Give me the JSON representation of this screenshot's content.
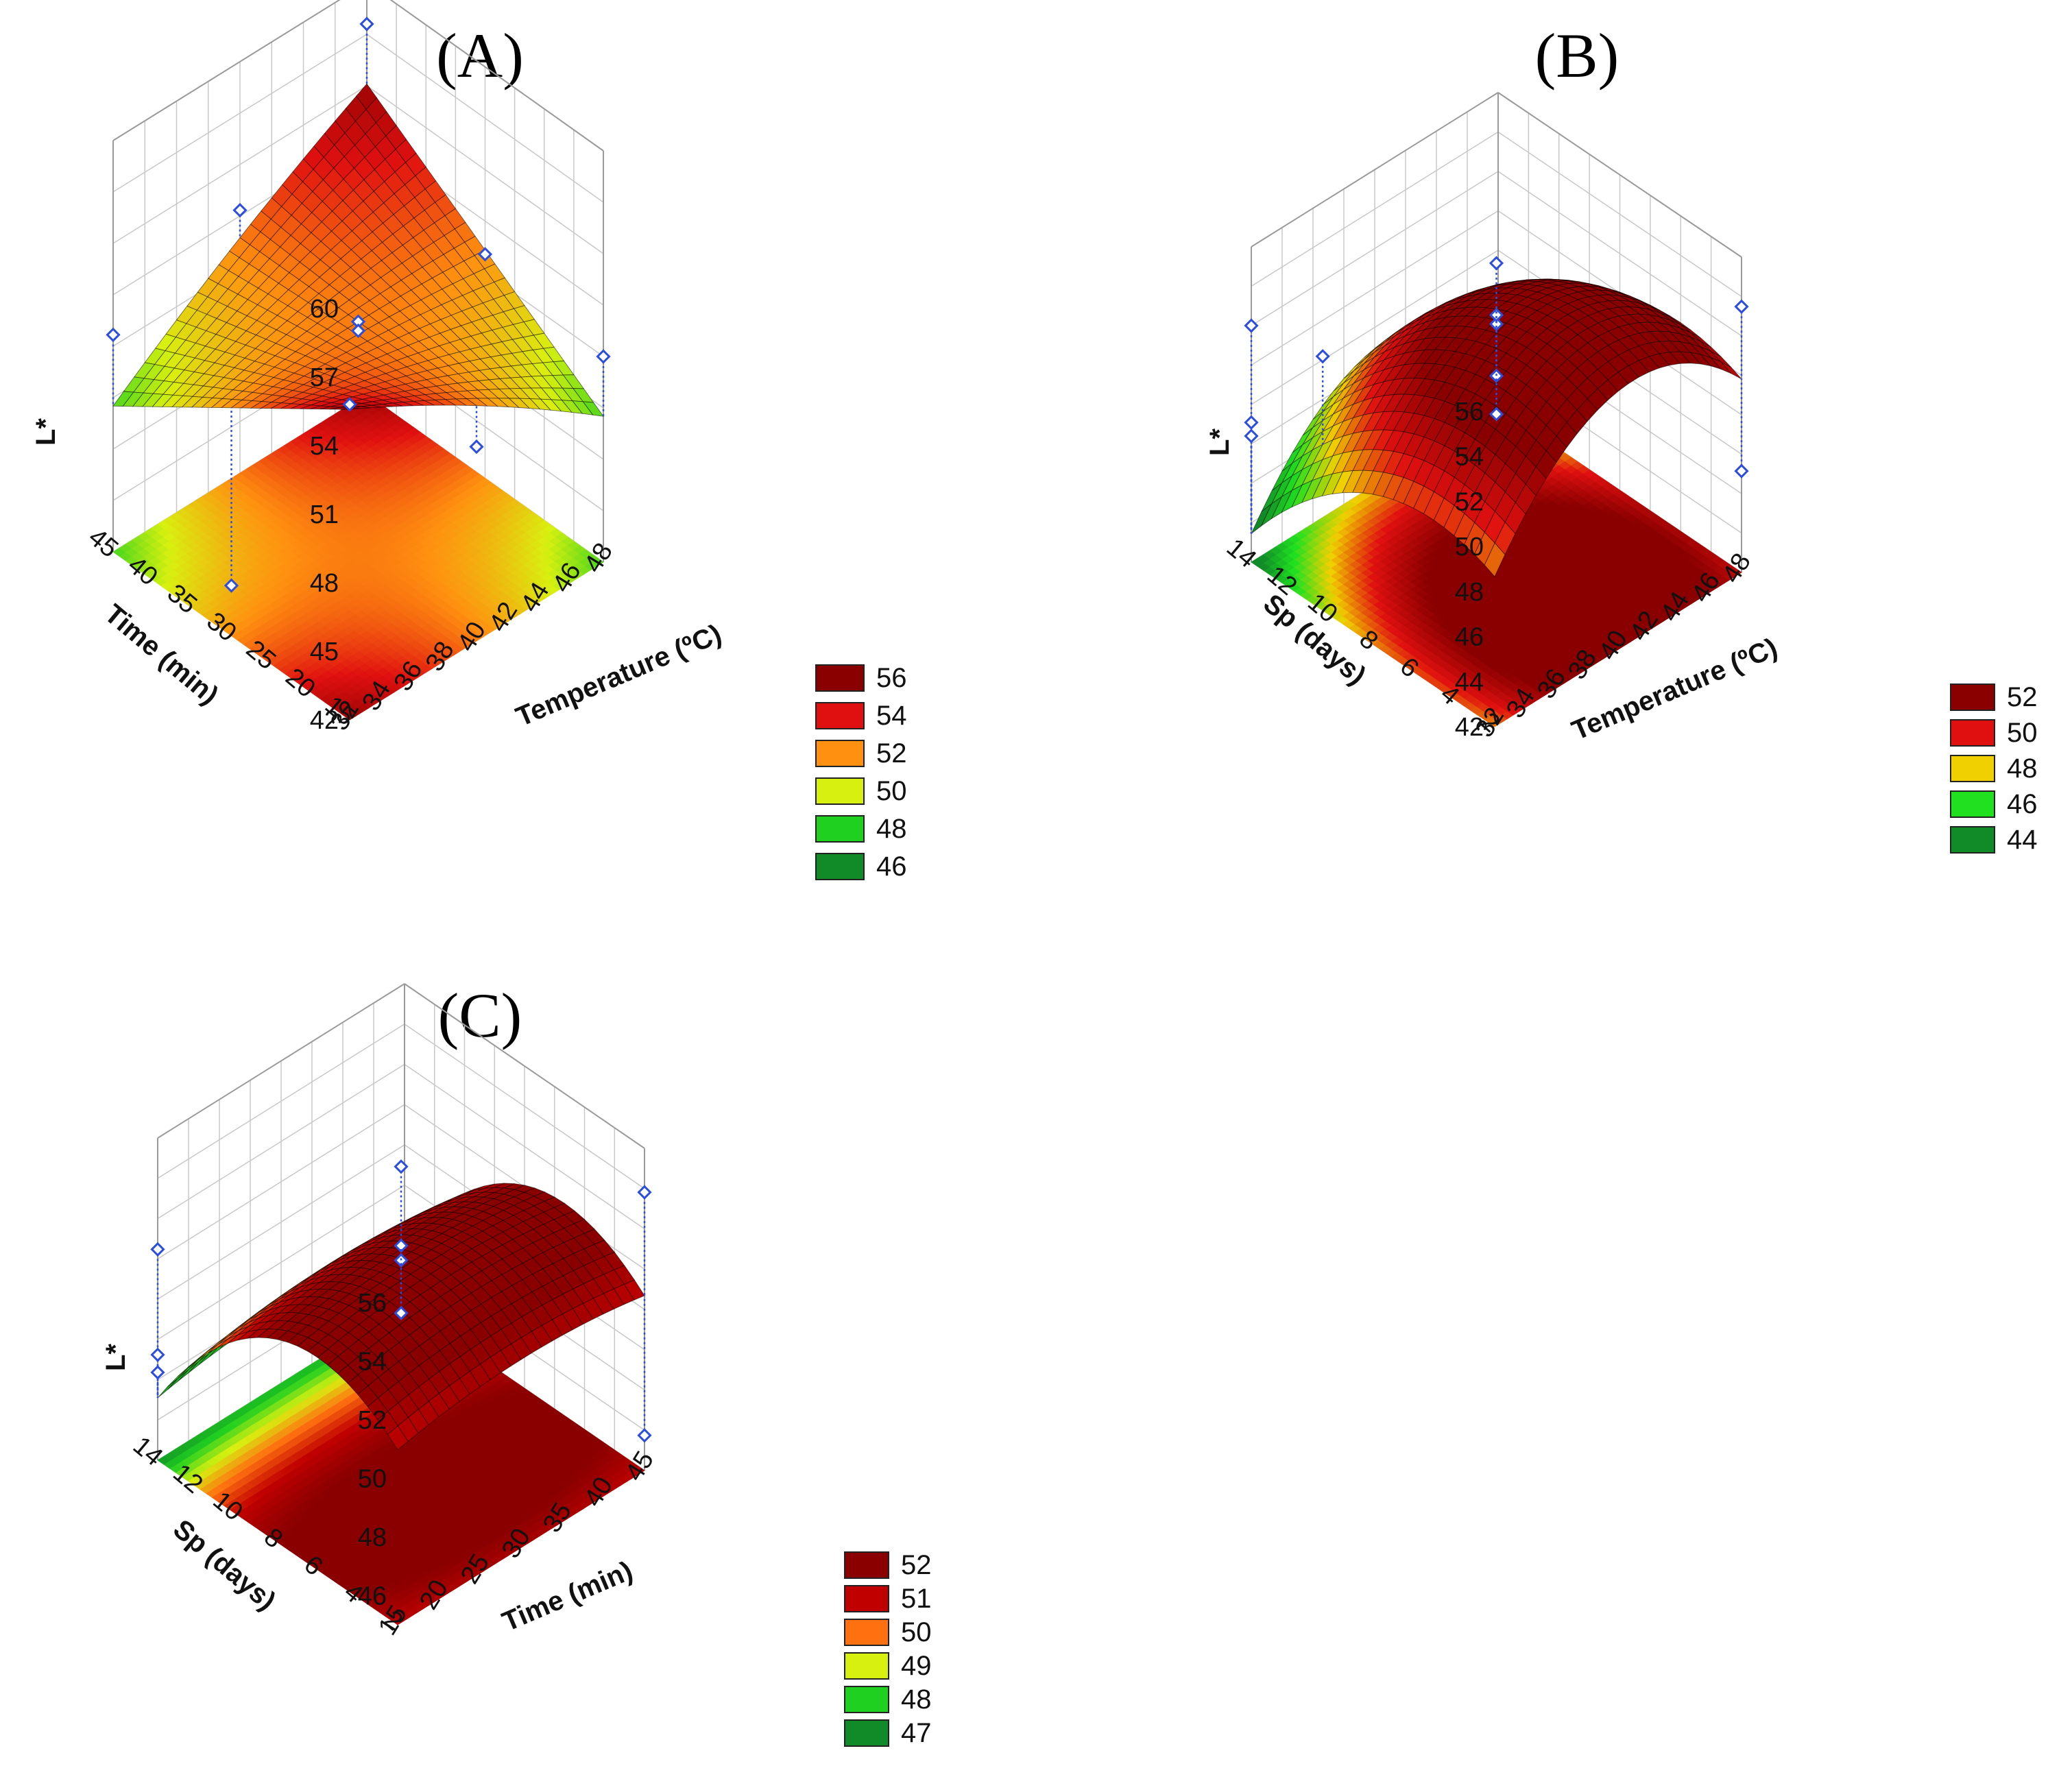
{
  "chart_data": [
    {
      "id": "A",
      "type": "surface",
      "title": "(A)",
      "xlabel": "Temperature (ºC)",
      "ylabel": "Time (min)",
      "zlabel": "L*",
      "x_ticks": [
        "32",
        "34",
        "36",
        "38",
        "40",
        "42",
        "44",
        "46",
        "48"
      ],
      "y_ticks": [
        "15",
        "20",
        "25",
        "30",
        "35",
        "40",
        "45"
      ],
      "z_ticks": [
        "42",
        "45",
        "48",
        "51",
        "54",
        "57",
        "60"
      ],
      "xlim": [
        32,
        48
      ],
      "ylim": [
        15,
        45
      ],
      "zlim": [
        42,
        60
      ],
      "surface_model": {
        "z0": 52.3,
        "xy": 0.03,
        "x2": -0.005,
        "y2": 0.0
      },
      "points": [
        {
          "x": 48,
          "y": 45,
          "z": 58.2
        },
        {
          "x": 32,
          "y": 45,
          "z": 51.5
        },
        {
          "x": 40,
          "y": 30,
          "z": 52.3
        },
        {
          "x": 40,
          "y": 30,
          "z": 51.9
        },
        {
          "x": 48,
          "y": 15,
          "z": 51.0
        },
        {
          "x": 32,
          "y": 15,
          "z": 55.8
        },
        {
          "x": 48,
          "y": 30,
          "z": 51.8
        },
        {
          "x": 40,
          "y": 45,
          "z": 53.5
        },
        {
          "x": 40,
          "y": 15,
          "z": 50.5
        },
        {
          "x": 32,
          "y": 30,
          "z": 44.2
        }
      ],
      "legend": [
        {
          "label": "56",
          "color": "#8a0000"
        },
        {
          "label": "54",
          "color": "#e01010"
        },
        {
          "label": "52",
          "color": "#ff9010"
        },
        {
          "label": "50",
          "color": "#d8f010"
        },
        {
          "label": "48",
          "color": "#20d020"
        },
        {
          "label": "46",
          "color": "#118a28"
        }
      ]
    },
    {
      "id": "B",
      "type": "surface",
      "title": "(B)",
      "xlabel": "Temperature (ºC)",
      "ylabel": "Sp (days)",
      "zlabel": "L*",
      "x_ticks": [
        "32",
        "34",
        "36",
        "38",
        "40",
        "42",
        "44",
        "46",
        "48"
      ],
      "y_ticks": [
        "2",
        "4",
        "6",
        "8",
        "10",
        "12",
        "14"
      ],
      "z_ticks": [
        "42",
        "44",
        "46",
        "48",
        "50",
        "52",
        "54",
        "56"
      ],
      "xlim": [
        32,
        48
      ],
      "ylim": [
        2,
        14
      ],
      "zlim": [
        42,
        56
      ],
      "surface_model": {
        "x0": 41,
        "y0": 5,
        "zmax": 54.2,
        "ax": 0.06,
        "ay": 0.075
      },
      "points": [
        {
          "x": 32,
          "y": 14,
          "z": 52.5
        },
        {
          "x": 32,
          "y": 14,
          "z": 48.2
        },
        {
          "x": 32,
          "y": 14,
          "z": 47.6
        },
        {
          "x": 34,
          "y": 12,
          "z": 51.5
        },
        {
          "x": 40,
          "y": 8,
          "z": 55.5
        },
        {
          "x": 40,
          "y": 8,
          "z": 52.8
        },
        {
          "x": 40,
          "y": 8,
          "z": 53.2
        },
        {
          "x": 40,
          "y": 8,
          "z": 50.5
        },
        {
          "x": 40,
          "y": 8,
          "z": 48.8
        },
        {
          "x": 48,
          "y": 2,
          "z": 53.8
        },
        {
          "x": 48,
          "y": 2,
          "z": 46.5
        }
      ],
      "legend": [
        {
          "label": "52",
          "color": "#8a0000"
        },
        {
          "label": "50",
          "color": "#e01010"
        },
        {
          "label": "48",
          "color": "#f0d000"
        },
        {
          "label": "46",
          "color": "#20e020"
        },
        {
          "label": "44",
          "color": "#118a28"
        }
      ]
    },
    {
      "id": "C",
      "type": "surface",
      "title": "(C)",
      "xlabel": "Time (min)",
      "ylabel": "Sp (days)",
      "zlabel": "L*",
      "x_ticks": [
        "15",
        "20",
        "25",
        "30",
        "35",
        "40",
        "45"
      ],
      "y_ticks": [
        "2",
        "4",
        "6",
        "8",
        "10",
        "12",
        "14"
      ],
      "z_ticks": [
        "46",
        "48",
        "50",
        "52",
        "54",
        "56"
      ],
      "xlim": [
        15,
        45
      ],
      "ylim": [
        2,
        14
      ],
      "zlim": [
        45,
        56
      ],
      "surface_model": {
        "y0": 6,
        "zmax": 52.7,
        "ay": 0.08,
        "bx": 0.002
      },
      "points": [
        {
          "x": 15,
          "y": 14,
          "z": 52.2
        },
        {
          "x": 15,
          "y": 14,
          "z": 48.6
        },
        {
          "x": 15,
          "y": 14,
          "z": 48.0
        },
        {
          "x": 30,
          "y": 8,
          "z": 55.2
        },
        {
          "x": 30,
          "y": 8,
          "z": 52.5
        },
        {
          "x": 30,
          "y": 8,
          "z": 52.0
        },
        {
          "x": 30,
          "y": 8,
          "z": 50.2
        },
        {
          "x": 45,
          "y": 2,
          "z": 54.5
        },
        {
          "x": 45,
          "y": 2,
          "z": 46.2
        }
      ],
      "legend": [
        {
          "label": "52",
          "color": "#8a0000"
        },
        {
          "label": "51",
          "color": "#c00000"
        },
        {
          "label": "50",
          "color": "#ff7010"
        },
        {
          "label": "49",
          "color": "#d8f010"
        },
        {
          "label": "48",
          "color": "#20d020"
        },
        {
          "label": "47",
          "color": "#118a28"
        }
      ]
    }
  ]
}
